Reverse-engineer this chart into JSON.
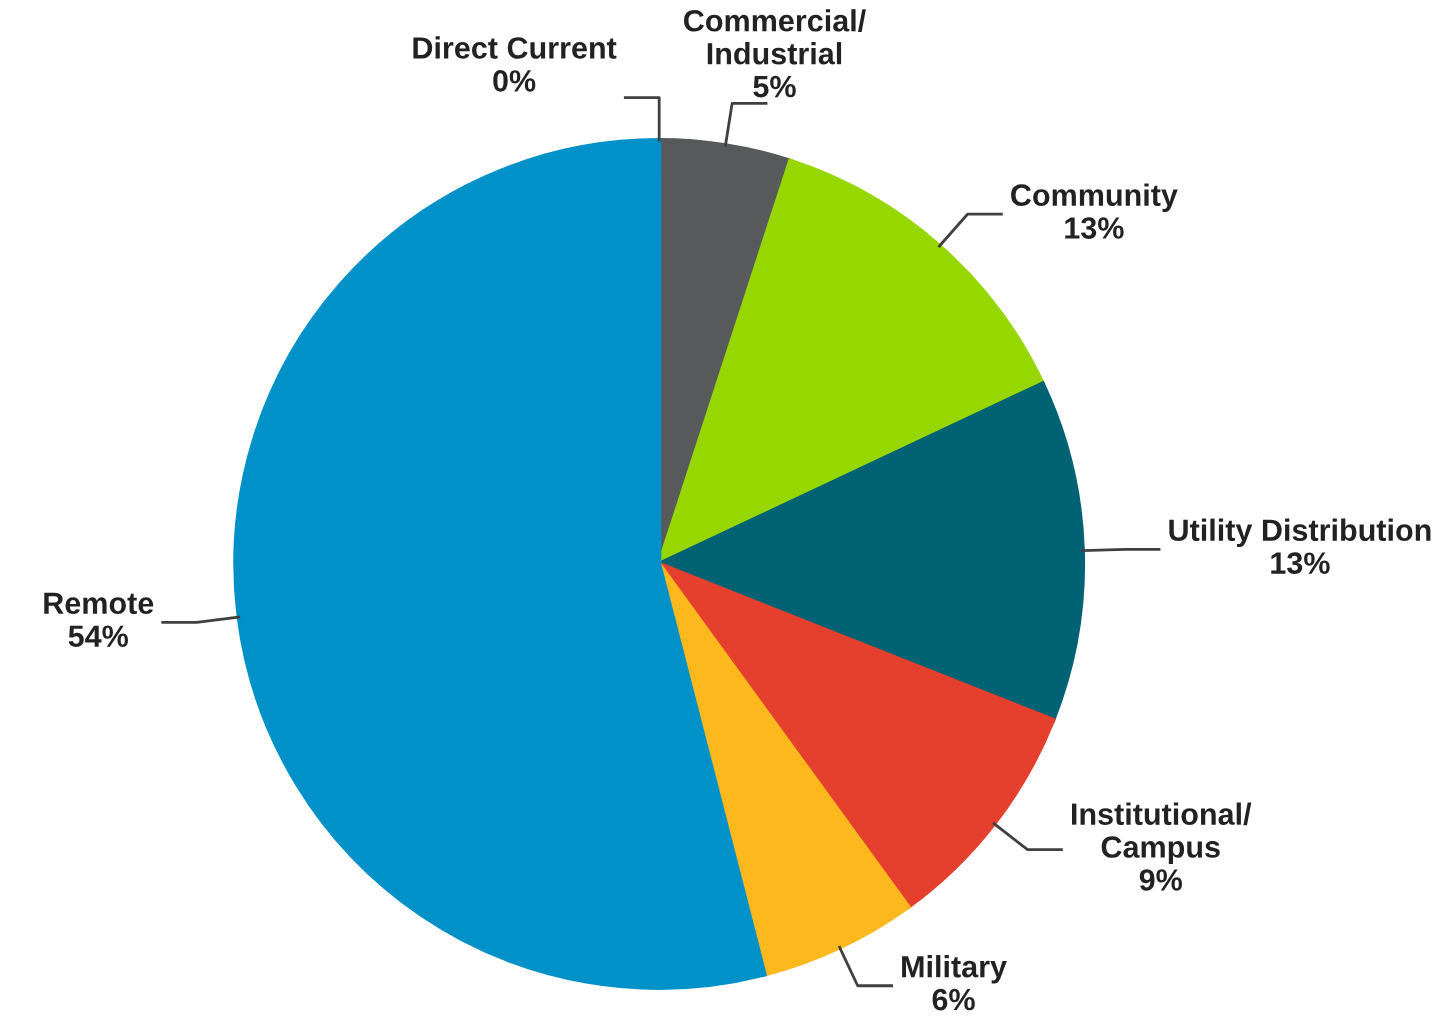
{
  "chart_data": {
    "type": "pie",
    "categories": [
      "Direct Current",
      "Commercial/\nIndustrial",
      "Community",
      "Utility Distribution",
      "Institutional/\nCampus",
      "Military",
      "Remote"
    ],
    "values": [
      0,
      5,
      13,
      13,
      9,
      6,
      54
    ],
    "colors": [
      "#8e2bbf",
      "#58595b",
      "#97d700",
      "#006272",
      "#e53f2e",
      "#fdb81e",
      "#0091c9"
    ],
    "value_labels": [
      "0%",
      "5%",
      "13%",
      "13%",
      "9%",
      "6%",
      "54%"
    ],
    "legend": false
  }
}
